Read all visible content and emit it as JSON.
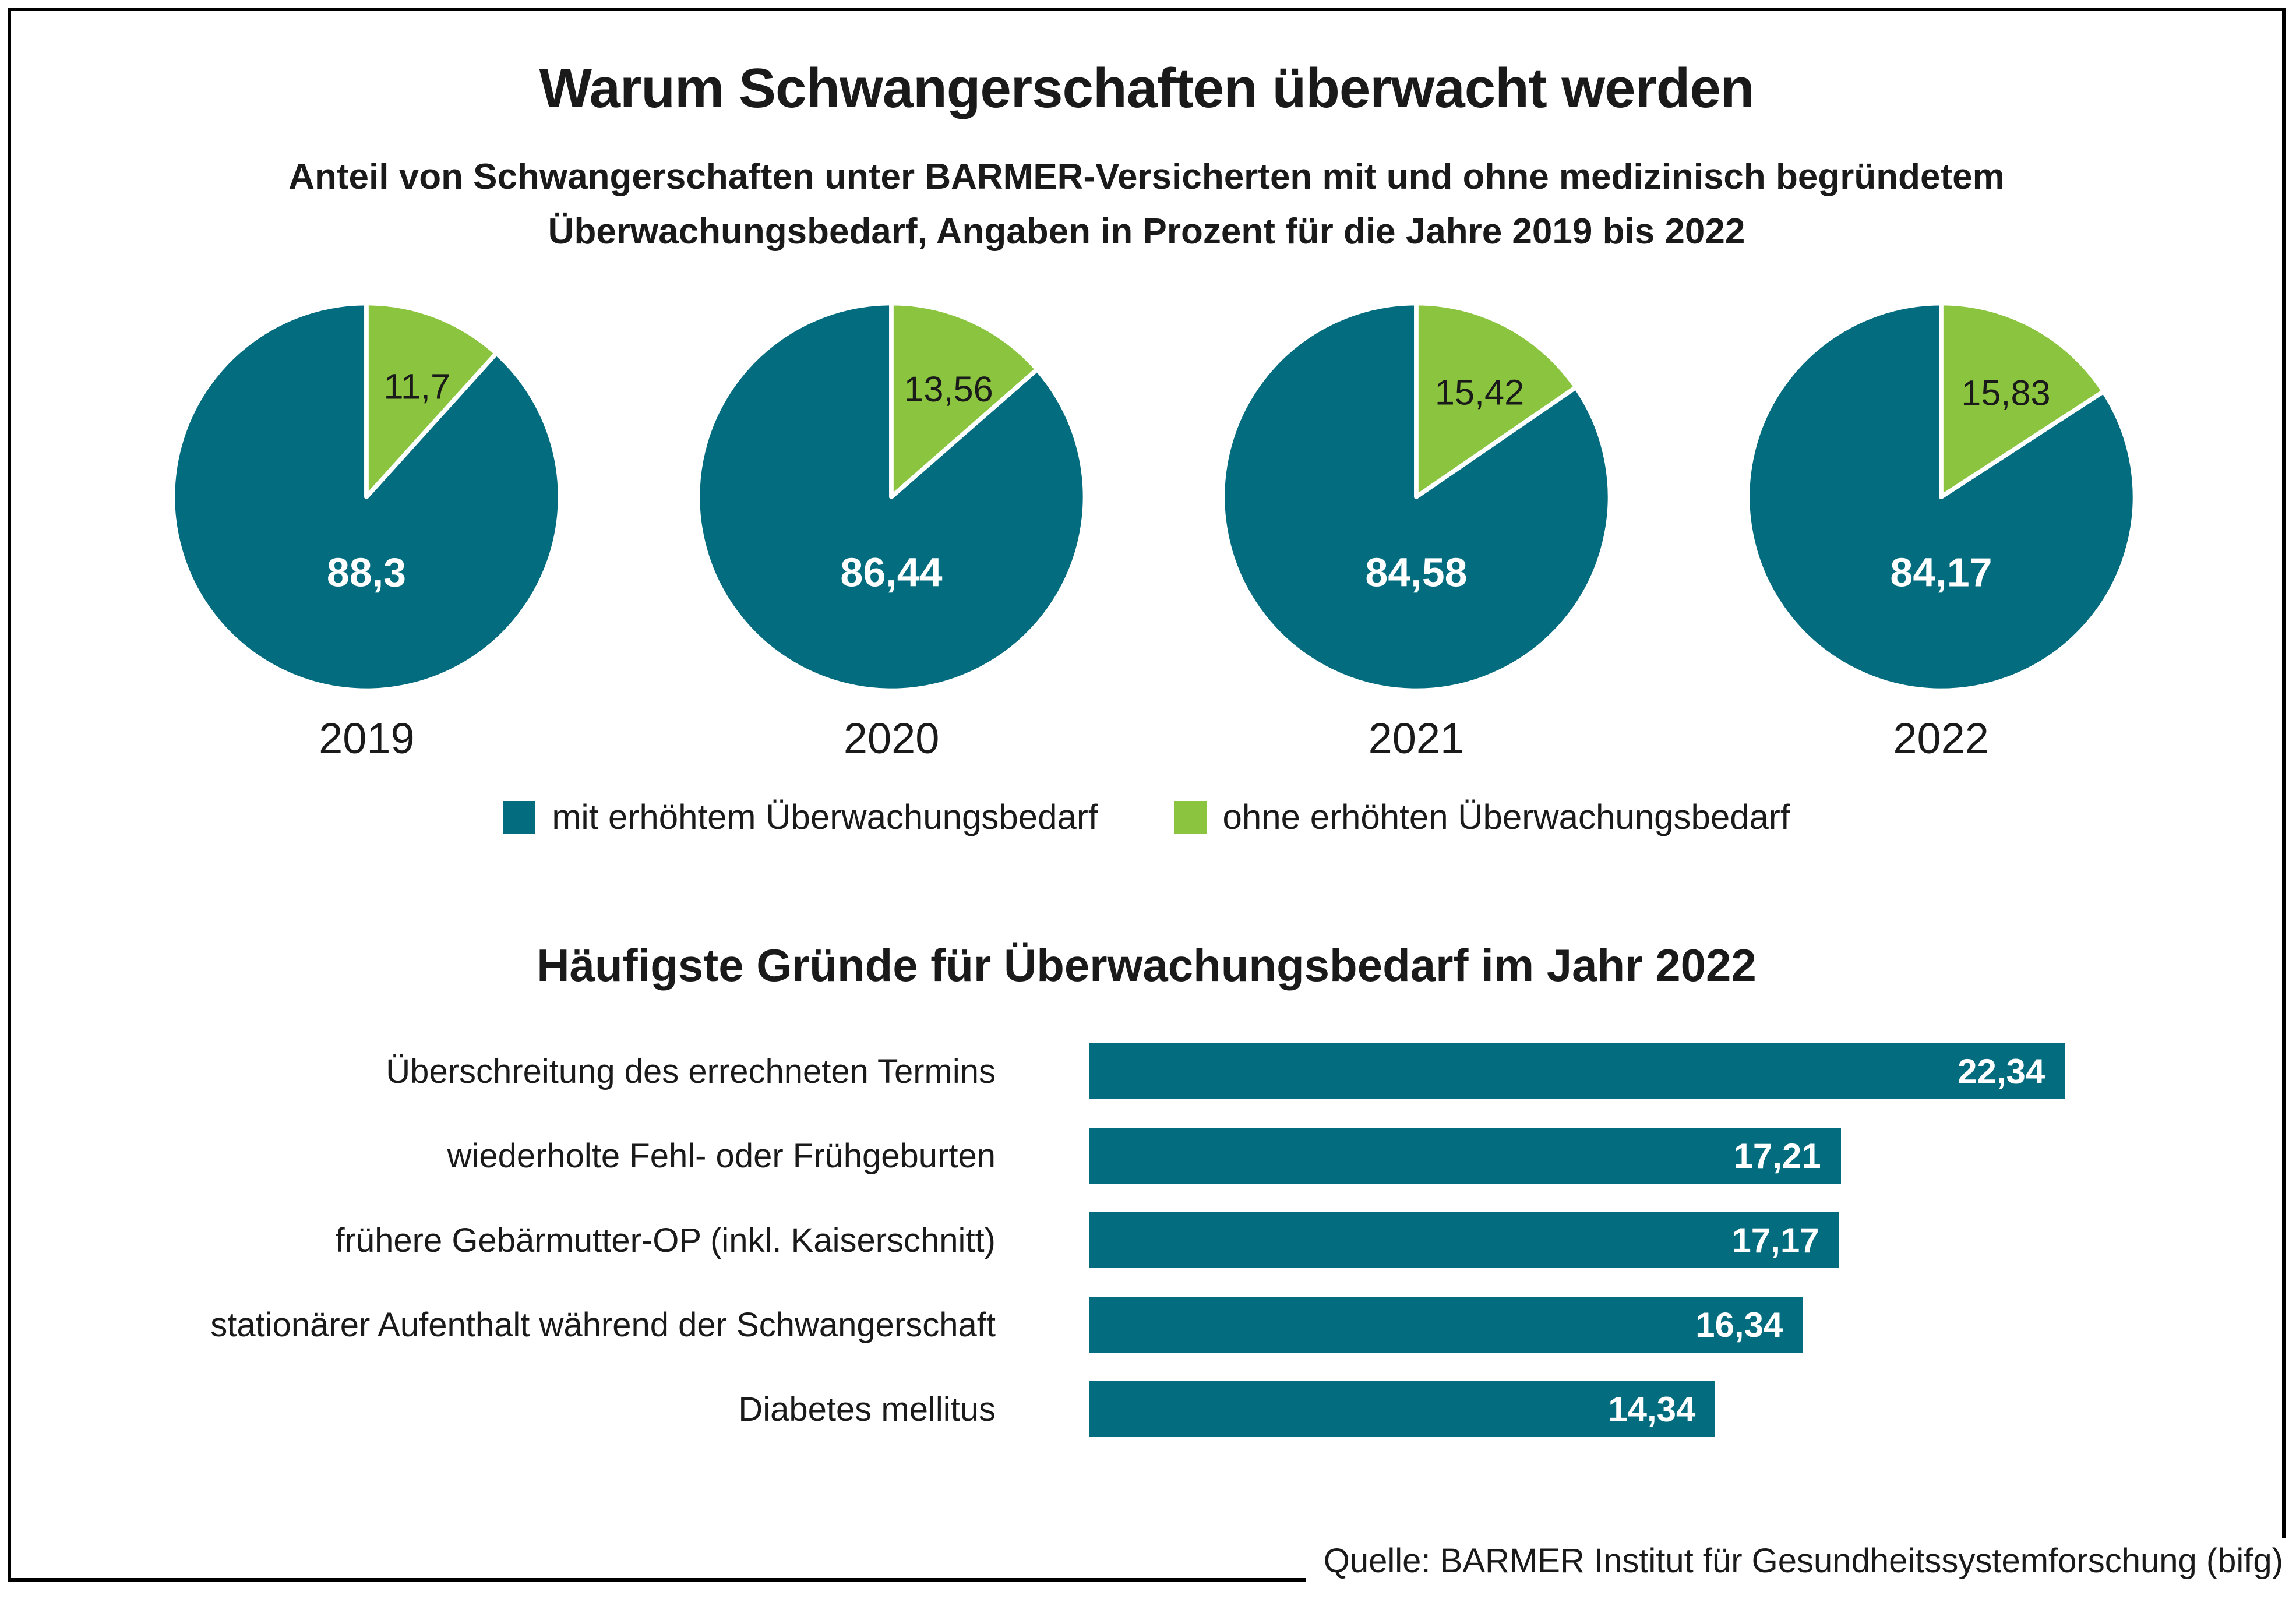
{
  "header": {
    "title": "Warum Schwangerschaften überwacht werden",
    "subtitle_line1": "Anteil von Schwangerschaften unter BARMER-Versicherten mit und ohne medizinisch begründetem",
    "subtitle_line2": "Überwachungsbedarf, Angaben in Prozent für die Jahre 2019 bis 2022"
  },
  "colors": {
    "teal": "#036C7E",
    "green": "#8BC540",
    "label_dark": "#1A1A1A",
    "label_light": "#FFFFFF"
  },
  "legend": {
    "items": [
      {
        "label": "mit erhöhtem Überwachungsbedarf",
        "color": "#036C7E"
      },
      {
        "label": "ohne erhöhten Überwachungsbedarf",
        "color": "#8BC540"
      }
    ]
  },
  "section2": {
    "title": "Häufigste Gründe für Überwachungsbedarf im Jahr 2022"
  },
  "source": {
    "text": "Quelle: BARMER Institut für Gesundheitssystemforschung (bifg)"
  },
  "chart_data": [
    {
      "type": "pie",
      "title": "Anteil von Schwangerschaften unter BARMER-Versicherten mit und ohne medizinisch begründetem Überwachungsbedarf, Angaben in Prozent für die Jahre 2019 bis 2022",
      "unit": "percent",
      "legend_position": "bottom",
      "pies": [
        {
          "year": "2019",
          "slices": [
            {
              "name": "mit erhöhtem Überwachungsbedarf",
              "value": 88.3,
              "display": "88,3",
              "color": "#036C7E"
            },
            {
              "name": "ohne erhöhten Überwachungsbedarf",
              "value": 11.7,
              "display": "11,7",
              "color": "#8BC540"
            }
          ]
        },
        {
          "year": "2020",
          "slices": [
            {
              "name": "mit erhöhtem Überwachungsbedarf",
              "value": 86.44,
              "display": "86,44",
              "color": "#036C7E"
            },
            {
              "name": "ohne erhöhten Überwachungsbedarf",
              "value": 13.56,
              "display": "13,56",
              "color": "#8BC540"
            }
          ]
        },
        {
          "year": "2021",
          "slices": [
            {
              "name": "mit erhöhtem Überwachungsbedarf",
              "value": 84.58,
              "display": "84,58",
              "color": "#036C7E"
            },
            {
              "name": "ohne erhöhten Überwachungsbedarf",
              "value": 15.42,
              "display": "15,42",
              "color": "#8BC540"
            }
          ]
        },
        {
          "year": "2022",
          "slices": [
            {
              "name": "mit erhöhtem Überwachungsbedarf",
              "value": 84.17,
              "display": "84,17",
              "color": "#036C7E"
            },
            {
              "name": "ohne erhöhten Überwachungsbedarf",
              "value": 15.83,
              "display": "15,83",
              "color": "#8BC540"
            }
          ]
        }
      ]
    },
    {
      "type": "bar",
      "orientation": "horizontal",
      "title": "Häufigste Gründe für Überwachungsbedarf im Jahr 2022",
      "unit": "percent",
      "categories": [
        "Überschreitung des errechneten Termins",
        "wiederholte Fehl- oder Frühgeburten",
        "frühere Gebärmutter-OP (inkl. Kaiserschnitt)",
        "stationärer Aufenthalt während der Schwangerschaft",
        "Diabetes mellitus"
      ],
      "values": [
        22.34,
        17.21,
        17.17,
        16.34,
        14.34
      ],
      "value_displays": [
        "22,34",
        "17,21",
        "17,17",
        "16,34",
        "14,34"
      ],
      "bar_color": "#036C7E",
      "xlim": [
        0,
        27.3
      ],
      "grid": false
    }
  ]
}
